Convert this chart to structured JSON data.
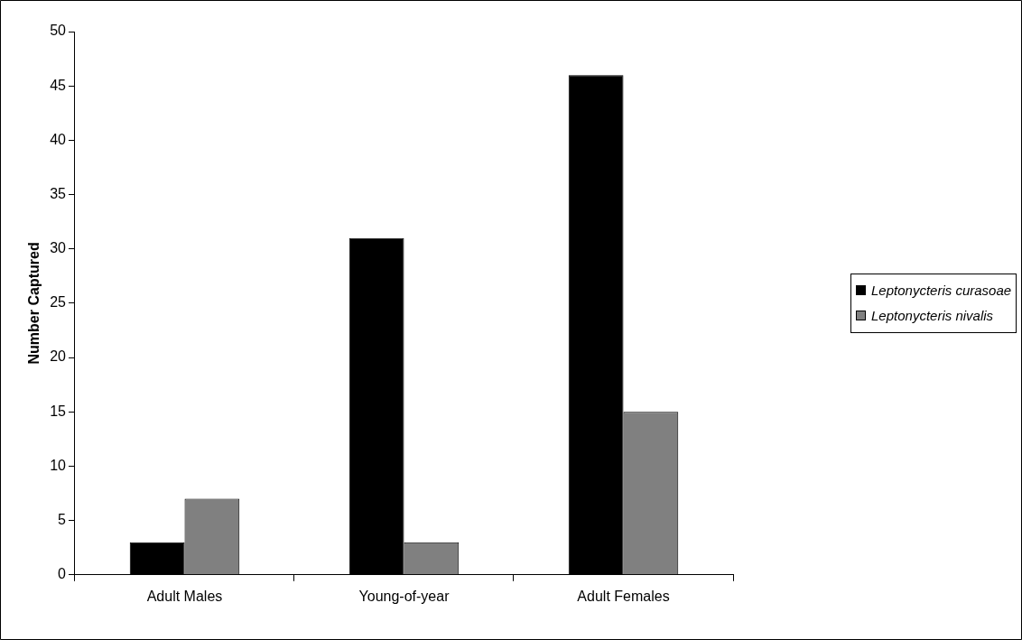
{
  "chart_data": {
    "type": "bar",
    "ylabel": "Number Captured",
    "categories": [
      "Adult Males",
      "Young-of-year",
      "Adult Females"
    ],
    "series": [
      {
        "name": "Leptonycteris curasoae",
        "color": "#000000",
        "values": [
          3,
          31,
          46
        ]
      },
      {
        "name": "Leptonycteris nivalis",
        "color": "#808080",
        "values": [
          7,
          3,
          15
        ]
      }
    ],
    "ylim": [
      0,
      50
    ],
    "yticks": [
      0,
      5,
      10,
      15,
      20,
      25,
      30,
      35,
      40,
      45,
      50
    ],
    "grid": false,
    "legend": "right"
  }
}
